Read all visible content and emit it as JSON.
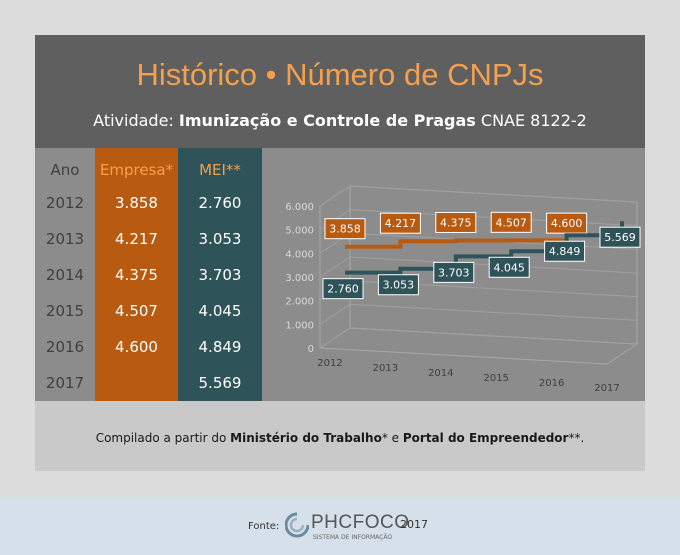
{
  "header": {
    "title": "Histórico • Número de CNPJs",
    "subtitle_prefix": "Atividade:",
    "subtitle_bold": "Imunização e Controle de Pragas",
    "subtitle_suffix": "CNAE 8122-2"
  },
  "table": {
    "headers": [
      "Ano",
      "Empresa*",
      "MEI**"
    ],
    "years": [
      "2012",
      "2013",
      "2014",
      "2015",
      "2016",
      "2017"
    ],
    "empresa": [
      "3.858",
      "4.217",
      "4.375",
      "4.507",
      "4.600",
      ""
    ],
    "mei": [
      "2.760",
      "3.053",
      "3.703",
      "4.045",
      "4.849",
      "5.569"
    ]
  },
  "chart_data": {
    "type": "line",
    "categories": [
      "2012",
      "2013",
      "2014",
      "2015",
      "2016",
      "2017"
    ],
    "y_ticks": [
      "6.000",
      "5.000",
      "4.000",
      "3.000",
      "2.000",
      "1.000",
      "0"
    ],
    "ylim": [
      0,
      6000
    ],
    "series": [
      {
        "values": [
          3858,
          4217,
          4375,
          4507,
          4600,
          null
        ],
        "labels": [
          "3.858",
          "4.217",
          "4.375",
          "4.507",
          "4.600",
          ""
        ],
        "color": "#b85a10"
      },
      {
        "values": [
          2760,
          3053,
          3703,
          4045,
          4849,
          5569
        ],
        "labels": [
          "2.760",
          "3.053",
          "3.703",
          "4.045",
          "4.849",
          "5.569"
        ],
        "color": "#2e5358"
      }
    ]
  },
  "footer": {
    "prefix": "Compilado a partir do",
    "source1": "Ministério do Trabalho",
    "mid": "* e",
    "source2": "Portal do Empreendedor",
    "suffix": "**."
  },
  "source": {
    "label": "Fonte:",
    "logo_text": "PHCFOCO",
    "logo_sub": "SISTEMA DE INFORMAÇÃO",
    "year": "2017"
  }
}
